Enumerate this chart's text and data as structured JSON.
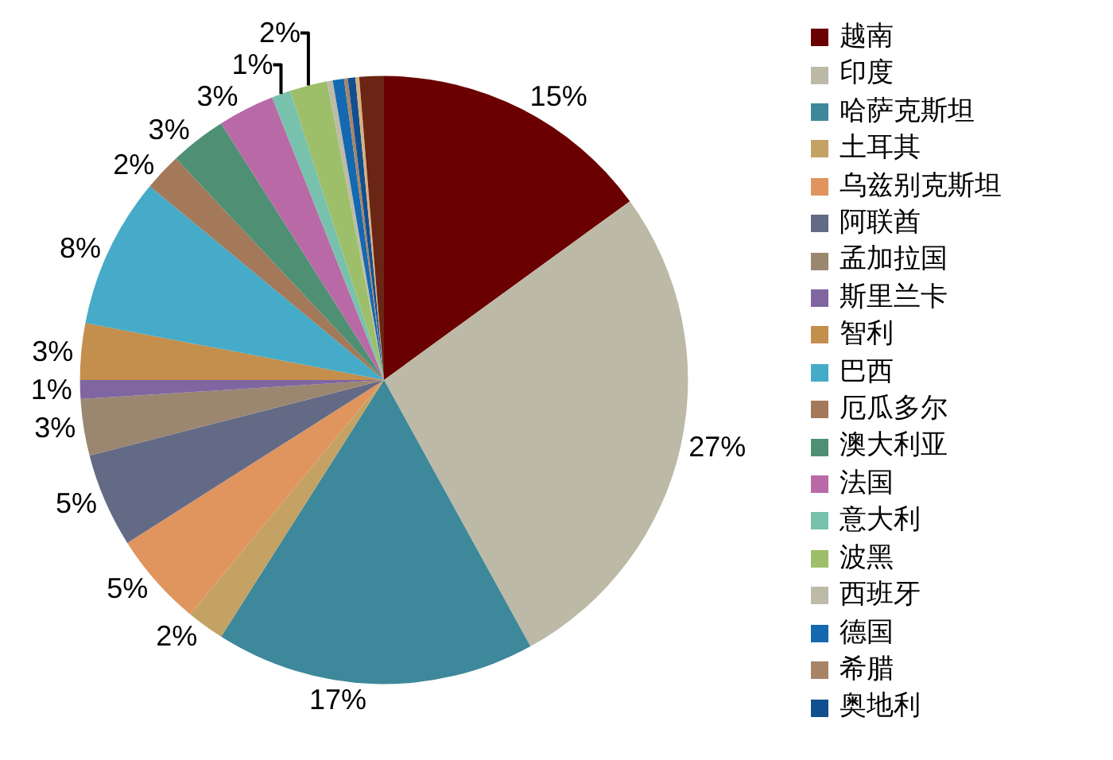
{
  "chart_data": {
    "type": "pie",
    "categories": [
      "越南",
      "印度",
      "哈萨克斯坦",
      "土耳其",
      "乌兹别克斯坦",
      "阿联酋",
      "孟加拉国",
      "斯里兰卡",
      "智利",
      "巴西",
      "厄瓜多尔",
      "澳大利亚",
      "法国",
      "意大利",
      "波黑",
      "西班牙",
      "德国",
      "希腊",
      "奥地利",
      null,
      null
    ],
    "values": [
      15,
      27,
      17,
      2,
      5,
      5,
      3,
      1,
      3,
      8,
      2,
      3,
      3,
      1,
      2,
      0.3,
      0.6,
      0.2,
      0.4,
      0.2,
      1.3
    ],
    "colors": [
      "#6b0000",
      "#bcbaa6",
      "#3d889a",
      "#c3a264",
      "#e0955e",
      "#636a86",
      "#9b8670",
      "#7f66a0",
      "#c48e4c",
      "#45abc8",
      "#a3795a",
      "#4f9075",
      "#b96aa6",
      "#77c1ad",
      "#9dbf6a",
      "#bdbba8",
      "#1469b0",
      "#a88467",
      "#124f8e",
      "#d8b080",
      "#6a2514"
    ],
    "value_labels": [
      "15%",
      "27%",
      "17%",
      "2%",
      "5%",
      "5%",
      "3%",
      "1%",
      "3%",
      "8%",
      "2%",
      "3%",
      "3%",
      "1%",
      "2%",
      null,
      null,
      null,
      null,
      null,
      null
    ],
    "legend": "right"
  }
}
